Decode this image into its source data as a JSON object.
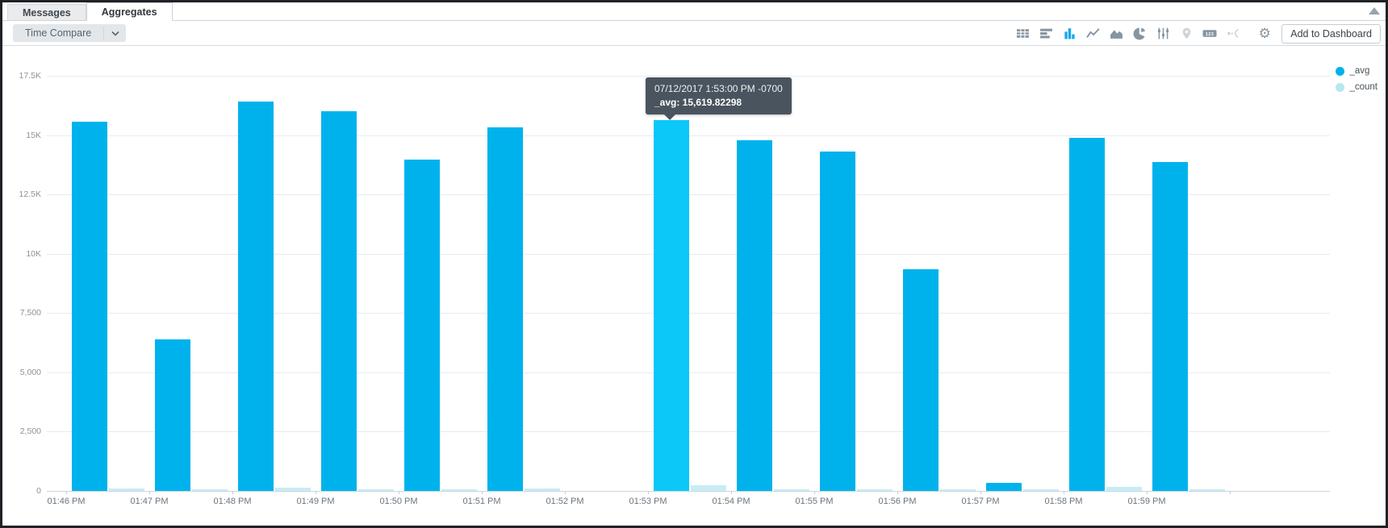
{
  "tabs": [
    {
      "label": "Messages",
      "active": false
    },
    {
      "label": "Aggregates",
      "active": true
    }
  ],
  "toolbar": {
    "time_compare_label": "Time Compare",
    "add_to_dashboard_label": "Add to Dashboard",
    "icons": [
      {
        "name": "table"
      },
      {
        "name": "bar-horizontal"
      },
      {
        "name": "bar-vertical",
        "active": true
      },
      {
        "name": "line"
      },
      {
        "name": "area"
      },
      {
        "name": "pie"
      },
      {
        "name": "sliders"
      },
      {
        "name": "map-pin",
        "faded": true
      },
      {
        "name": "numeric",
        "label": "123"
      },
      {
        "name": "flow",
        "faded": true
      },
      {
        "name": "gear",
        "separated": true
      }
    ]
  },
  "legend": [
    {
      "label": "_avg",
      "color": "#00b1eb"
    },
    {
      "label": "_count",
      "color": "#b7e7f1"
    }
  ],
  "tooltip": {
    "line1": "07/12/2017 1:53:00 PM -0700",
    "line2": "_avg: 15,619.82298"
  },
  "chart_data": {
    "type": "bar",
    "categories": [
      "01:46 PM",
      "01:47 PM",
      "01:48 PM",
      "01:49 PM",
      "01:50 PM",
      "01:51 PM",
      "01:52 PM",
      "01:53 PM",
      "01:54 PM",
      "01:55 PM",
      "01:56 PM",
      "01:57 PM",
      "01:58 PM",
      "01:59 PM"
    ],
    "series": [
      {
        "name": "_avg",
        "color": "#00b2ec",
        "values": [
          15560,
          6400,
          16400,
          16000,
          13960,
          15320,
          null,
          15619.82298,
          14780,
          14300,
          9350,
          350,
          14900,
          13860
        ]
      },
      {
        "name": "_count",
        "color": "#c8ecf5",
        "values": [
          110,
          55,
          150,
          75,
          60,
          100,
          null,
          250,
          70,
          65,
          70,
          55,
          175,
          80
        ]
      }
    ],
    "highlight_index": 7,
    "highlight_color": "#0bc8f8",
    "title": "",
    "xlabel": "",
    "ylabel": "",
    "ylim": [
      0,
      17500
    ],
    "yticks": [
      {
        "label": "17.5K",
        "value": 17500
      },
      {
        "label": "15K",
        "value": 15000
      },
      {
        "label": "12.5K",
        "value": 12500
      },
      {
        "label": "10K",
        "value": 10000
      },
      {
        "label": "7,500",
        "value": 7500
      },
      {
        "label": "5,000",
        "value": 5000
      },
      {
        "label": "2,500",
        "value": 2500
      },
      {
        "label": "0",
        "value": 0
      }
    ],
    "grid": true,
    "legend_position": "top-right"
  }
}
